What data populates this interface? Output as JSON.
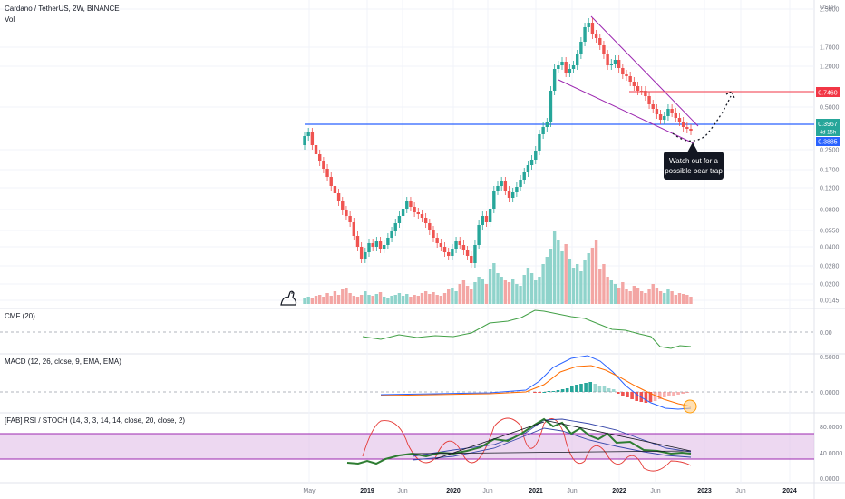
{
  "header": {
    "title": "Cardano / TetherUS, 2W, BINANCE",
    "vol_label": "Vol"
  },
  "colors": {
    "up": "#26a69a",
    "down": "#ef5350",
    "vol_up": "#8fd3cb",
    "vol_down": "#f3a6a4",
    "hline_blue": "#2962ff",
    "hline_red": "#f23645",
    "wedge": "#9c27b0",
    "cmf": "#43a047",
    "macd": "#2962ff",
    "signal": "#ff6d00",
    "rsi": "#2e7d32",
    "stoch_k": "#e53935",
    "stoch_d": "#3949ab",
    "rsi_band": "#e1bee7",
    "callout_bg": "#131722",
    "callout_text": "#ffffff"
  },
  "main_pane": {
    "price_axis_unit": "USDT",
    "price_ticks": [
      "2.5000",
      "1.7000",
      "1.2000",
      "0.5000",
      "0.2500",
      "0.1700",
      "0.1200",
      "0.0800",
      "0.0550",
      "0.0400",
      "0.0280",
      "0.0200",
      "0.0145"
    ],
    "level_resistance": "0.7460",
    "last_price": "0.3967",
    "countdown": "4d 15h",
    "level_support": "0.3885",
    "annotation": "Watch out for a possible bear trap"
  },
  "cmf_pane": {
    "label": "CMF (20)",
    "ticks": [
      "0.00"
    ]
  },
  "macd_pane": {
    "label": "MACD (12, 26, close, 9, EMA, EMA)",
    "ticks": [
      "0.5000",
      "0.0000"
    ]
  },
  "rsi_pane": {
    "label": "[FAB] RSI / STOCH (14, 3, 3, 14, 14, close, 20, close, 2)",
    "ticks": [
      "80.0000",
      "40.0000",
      "0.0000"
    ]
  },
  "time_axis": [
    "May",
    "2019",
    "Jun",
    "2020",
    "Jun",
    "2021",
    "Jun",
    "2022",
    "Jun",
    "2023",
    "Jun",
    "2024"
  ]
}
